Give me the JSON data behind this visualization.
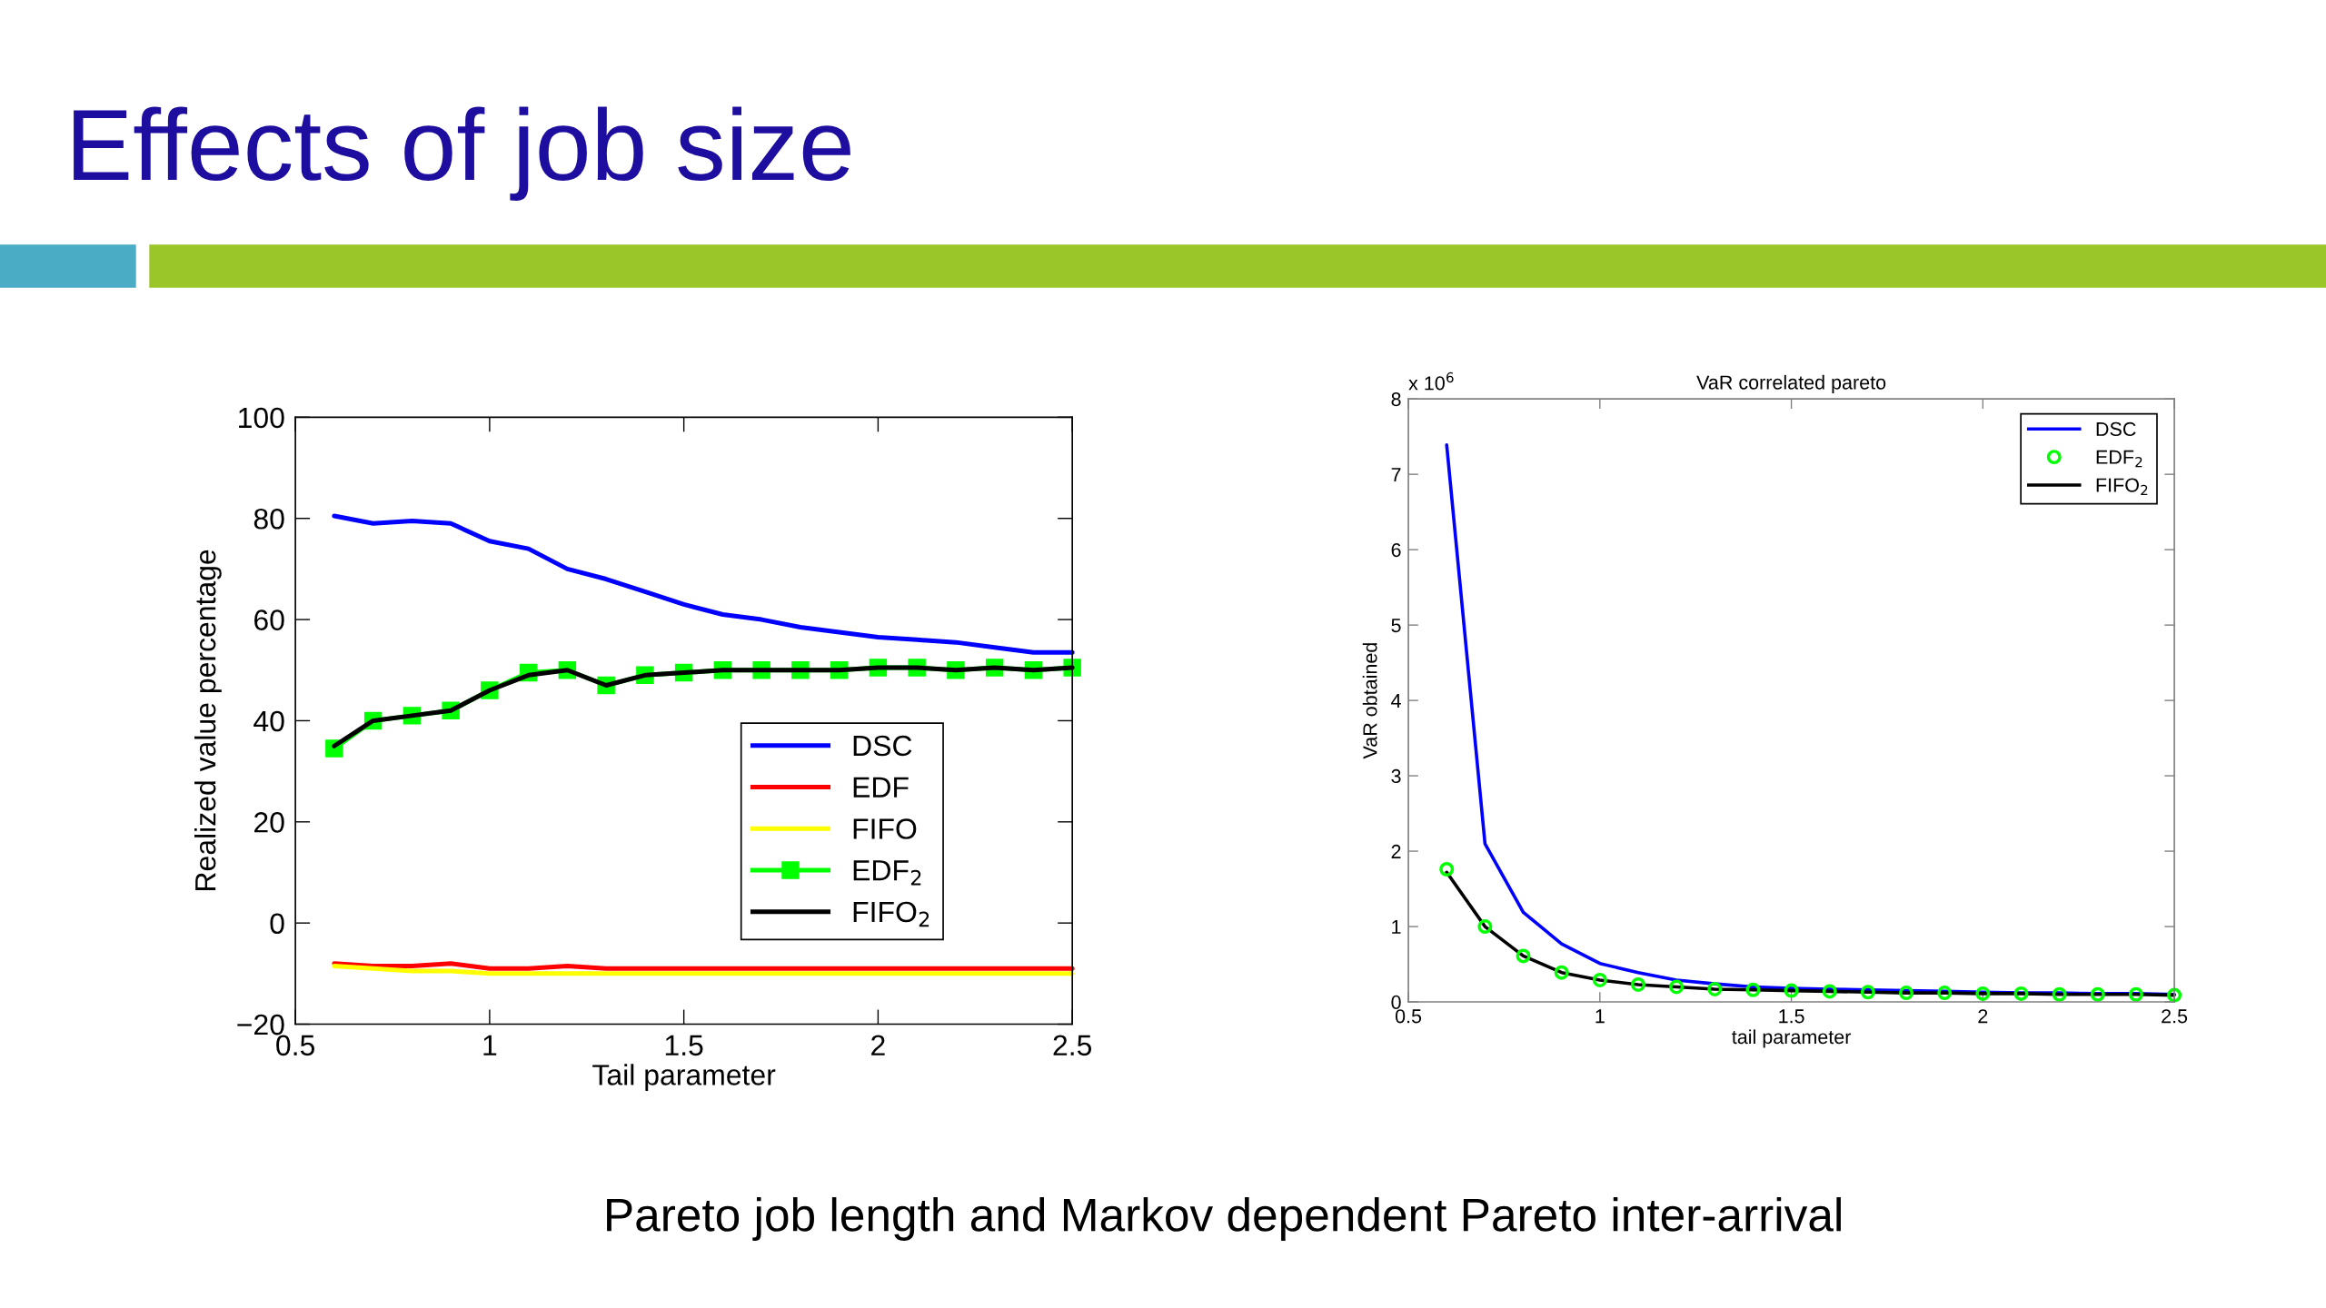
{
  "chart_data": [
    {
      "type": "other",
      "title": "Effects of job size",
      "annotations": [
        "Pareto job length and Markov dependent Pareto inter-arrival"
      ]
    },
    {
      "type": "line",
      "xlabel": "Tail parameter",
      "ylabel": "Realized value percentage",
      "x": [
        0.6,
        0.7,
        0.8,
        0.9,
        1.0,
        1.1,
        1.2,
        1.3,
        1.4,
        1.5,
        1.6,
        1.7,
        1.8,
        1.9,
        2.0,
        2.1,
        2.2,
        2.3,
        2.4,
        2.5
      ],
      "xlim": [
        0.5,
        2.5
      ],
      "xticks": [
        0.5,
        1,
        1.5,
        2,
        2.5
      ],
      "ylim": [
        -20,
        100
      ],
      "yticks": [
        -20,
        0,
        20,
        40,
        60,
        80,
        100
      ],
      "grid": false,
      "legend": "lower right",
      "marker": "none",
      "line_style": "solid",
      "series": [
        {
          "name": "DSC",
          "color": "#0000ff",
          "values": [
            80.5,
            79,
            79.5,
            79,
            75.5,
            74,
            70,
            68,
            65.5,
            63,
            61,
            60,
            58.5,
            57.5,
            56.5,
            56,
            55.5,
            54.5,
            53.5,
            53.5
          ]
        },
        {
          "name": "EDF",
          "color": "#ff0000",
          "values": [
            -8,
            -8.5,
            -8.5,
            -8,
            -9,
            -9,
            -8.5,
            -9,
            -9,
            -9,
            -9,
            -9,
            -9,
            -9,
            -9,
            -9,
            -9,
            -9,
            -9,
            -9
          ]
        },
        {
          "name": "FIFO",
          "color": "#ffff00",
          "values": [
            -8.5,
            -9,
            -9.5,
            -9.5,
            -10,
            -10,
            -10,
            -10,
            -10,
            -10,
            -10,
            -10,
            -10,
            -10,
            -10,
            -10,
            -10,
            -10,
            -10,
            -10
          ]
        },
        {
          "name": "EDF$_{2}$",
          "color": "#00ff00",
          "marker": "square",
          "values": [
            34.5,
            40,
            41,
            42,
            46,
            49.5,
            50,
            47,
            49,
            49.5,
            50,
            50,
            50,
            50,
            50.5,
            50.5,
            50,
            50.5,
            50,
            50.5
          ]
        },
        {
          "name": "FIFO$_{2}$",
          "color": "#000000",
          "values": [
            35,
            40,
            41,
            42,
            46,
            49,
            50,
            47,
            49,
            49.5,
            50,
            50,
            50,
            50,
            50.5,
            50.5,
            50,
            50.5,
            50,
            50.5
          ]
        }
      ]
    },
    {
      "type": "line",
      "title": "VaR correlated pareto",
      "xlabel": "tail parameter",
      "ylabel": "VaR obtained",
      "annotations": [
        "x 10$^{6}$"
      ],
      "x": [
        0.6,
        0.7,
        0.8,
        0.9,
        1.0,
        1.1,
        1.2,
        1.3,
        1.4,
        1.5,
        1.6,
        1.7,
        1.8,
        1.9,
        2.0,
        2.1,
        2.2,
        2.3,
        2.4,
        2.5
      ],
      "xlim": [
        0.5,
        2.5
      ],
      "xticks": [
        0.5,
        1,
        1.5,
        2,
        2.5
      ],
      "ylim": [
        0,
        8
      ],
      "yticks": [
        0,
        1,
        2,
        3,
        4,
        5,
        6,
        7,
        8
      ],
      "grid": false,
      "legend": "top right",
      "marker": "none",
      "line_style": "solid",
      "series": [
        {
          "name": "DSC",
          "color": "#0000ff",
          "values": [
            7.39,
            2.1,
            1.19,
            0.77,
            0.51,
            0.39,
            0.29,
            0.24,
            0.2,
            0.18,
            0.17,
            0.16,
            0.15,
            0.14,
            0.13,
            0.12,
            0.12,
            0.11,
            0.11,
            0.1
          ]
        },
        {
          "name": "EDF$_{2}$",
          "color": "#00ff00",
          "type": "scatter",
          "marker": "circle",
          "values": [
            1.76,
            1.0,
            0.61,
            0.39,
            0.29,
            0.23,
            0.2,
            0.17,
            0.16,
            0.15,
            0.14,
            0.13,
            0.12,
            0.12,
            0.11,
            0.11,
            0.1,
            0.1,
            0.1,
            0.09
          ]
        },
        {
          "name": "FIFO$_{2}$",
          "color": "#000000",
          "values": [
            1.72,
            1.0,
            0.61,
            0.39,
            0.29,
            0.23,
            0.2,
            0.17,
            0.16,
            0.15,
            0.14,
            0.13,
            0.12,
            0.12,
            0.11,
            0.11,
            0.1,
            0.1,
            0.1,
            0.09
          ]
        }
      ]
    }
  ]
}
